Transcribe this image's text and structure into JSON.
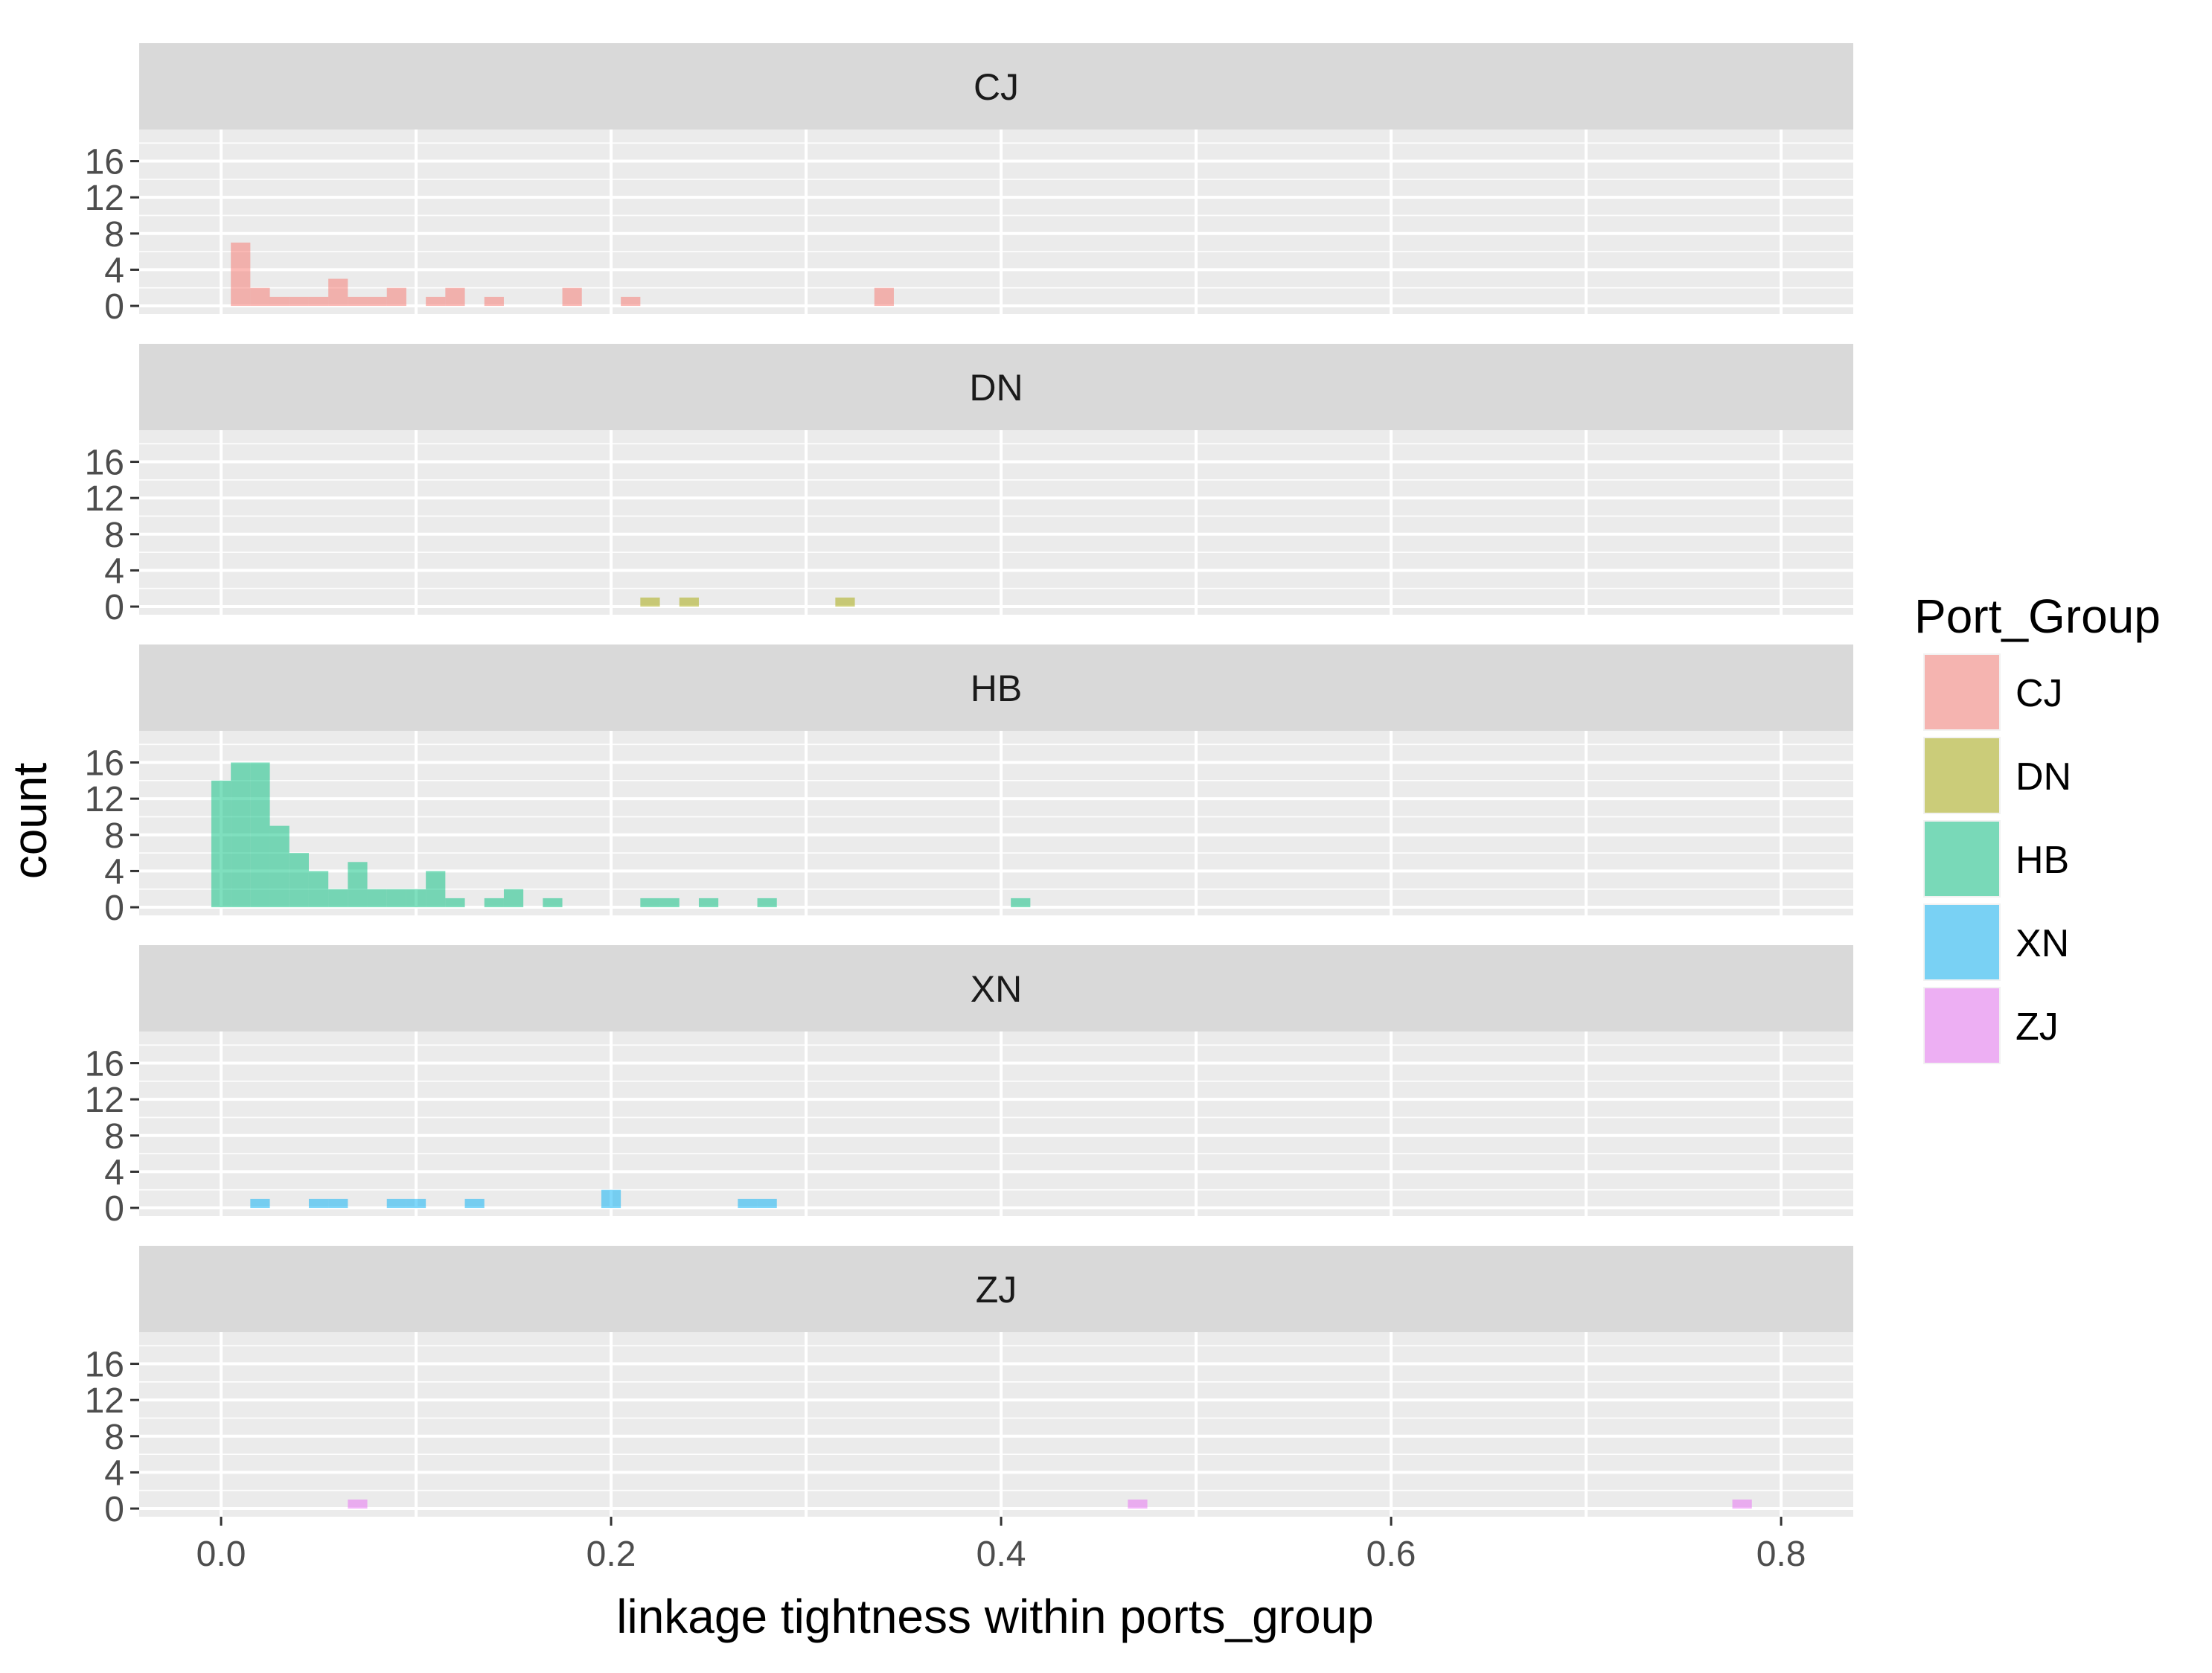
{
  "chart_data": {
    "type": "bar",
    "subtype": "faceted histogram",
    "xlabel": "linkage tightness within ports_group",
    "ylabel": "count",
    "xlim": [
      -0.042,
      0.837
    ],
    "ylim": [
      -0.9,
      19.5
    ],
    "x_ticks": [
      0.0,
      0.2,
      0.4,
      0.6,
      0.8
    ],
    "x_tick_labels": [
      "0.0",
      "0.2",
      "0.4",
      "0.6",
      "0.8"
    ],
    "y_ticks": [
      0,
      4,
      8,
      12,
      16
    ],
    "y_tick_labels": [
      "0",
      "4",
      "8",
      "12",
      "16"
    ],
    "bin_width": 0.01,
    "grid": true,
    "legend": {
      "title": "Port_Group",
      "placement": "right",
      "items": [
        {
          "label": "CJ",
          "color": "#f8766d"
        },
        {
          "label": "DN",
          "color": "#a3a500"
        },
        {
          "label": "HB",
          "color": "#00bf7d"
        },
        {
          "label": "XN",
          "color": "#00b0f6"
        },
        {
          "label": "ZJ",
          "color": "#e76bf3"
        }
      ]
    },
    "fill_alpha": 0.5,
    "panels": [
      {
        "label": "CJ",
        "color": "#f8766d",
        "bins": [
          [
            0.01,
            7
          ],
          [
            0.02,
            2
          ],
          [
            0.03,
            1
          ],
          [
            0.04,
            1
          ],
          [
            0.05,
            1
          ],
          [
            0.06,
            3
          ],
          [
            0.07,
            1
          ],
          [
            0.08,
            1
          ],
          [
            0.09,
            2
          ],
          [
            0.11,
            1
          ],
          [
            0.12,
            2
          ],
          [
            0.14,
            1
          ],
          [
            0.18,
            2
          ],
          [
            0.21,
            1
          ],
          [
            0.34,
            2
          ]
        ]
      },
      {
        "label": "DN",
        "color": "#a3a500",
        "bins": [
          [
            0.22,
            1
          ],
          [
            0.24,
            1
          ],
          [
            0.32,
            1
          ]
        ]
      },
      {
        "label": "HB",
        "color": "#00bf7d",
        "bins": [
          [
            0.0,
            14
          ],
          [
            0.01,
            16
          ],
          [
            0.02,
            16
          ],
          [
            0.03,
            9
          ],
          [
            0.04,
            6
          ],
          [
            0.05,
            4
          ],
          [
            0.06,
            2
          ],
          [
            0.07,
            5
          ],
          [
            0.08,
            2
          ],
          [
            0.09,
            2
          ],
          [
            0.1,
            2
          ],
          [
            0.11,
            4
          ],
          [
            0.12,
            1
          ],
          [
            0.14,
            1
          ],
          [
            0.15,
            2
          ],
          [
            0.17,
            1
          ],
          [
            0.22,
            1
          ],
          [
            0.23,
            1
          ],
          [
            0.25,
            1
          ],
          [
            0.28,
            1
          ],
          [
            0.41,
            1
          ]
        ]
      },
      {
        "label": "XN",
        "color": "#00b0f6",
        "bins": [
          [
            0.02,
            1
          ],
          [
            0.05,
            1
          ],
          [
            0.06,
            1
          ],
          [
            0.09,
            1
          ],
          [
            0.1,
            1
          ],
          [
            0.13,
            1
          ],
          [
            0.2,
            2
          ],
          [
            0.27,
            1
          ],
          [
            0.28,
            1
          ]
        ]
      },
      {
        "label": "ZJ",
        "color": "#e76bf3",
        "bins": [
          [
            0.07,
            1
          ],
          [
            0.47,
            1
          ],
          [
            0.78,
            1
          ]
        ]
      }
    ]
  }
}
